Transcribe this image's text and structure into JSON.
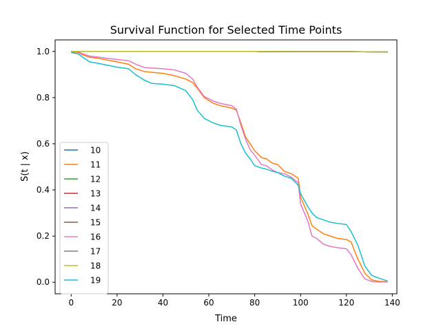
{
  "chart_data": {
    "type": "line",
    "title": "Survival Function for Selected Time Points",
    "xlabel": "Time",
    "ylabel": "S(t | x)",
    "xlim": [
      -7,
      142
    ],
    "ylim": [
      -0.05,
      1.05
    ],
    "xticks": [
      0,
      20,
      40,
      60,
      80,
      100,
      120,
      140
    ],
    "yticks": [
      0.0,
      0.2,
      0.4,
      0.6,
      0.8,
      1.0
    ],
    "grid": false,
    "legend_position": "lower-left",
    "series": [
      {
        "name": "10",
        "color": "#1f77b4",
        "x": [
          0,
          20,
          40,
          60,
          80,
          100,
          120,
          138
        ],
        "y": [
          1.0,
          1.0,
          1.0,
          1.0,
          1.0,
          0.999,
          0.999,
          0.998
        ]
      },
      {
        "name": "11",
        "color": "#ff7f0e",
        "x": [
          0,
          3,
          5,
          8,
          12,
          16,
          20,
          25,
          28,
          32,
          35,
          40,
          45,
          50,
          53,
          55,
          58,
          62,
          65,
          70,
          72,
          74,
          76,
          78,
          80,
          83,
          85,
          88,
          90,
          93,
          96,
          99,
          100,
          103,
          105,
          107,
          110,
          113,
          116,
          120,
          122,
          125,
          128,
          131,
          134,
          138
        ],
        "y": [
          0.998,
          0.996,
          0.985,
          0.975,
          0.97,
          0.962,
          0.955,
          0.945,
          0.925,
          0.913,
          0.91,
          0.905,
          0.895,
          0.88,
          0.865,
          0.84,
          0.8,
          0.775,
          0.765,
          0.755,
          0.745,
          0.69,
          0.63,
          0.6,
          0.57,
          0.54,
          0.535,
          0.515,
          0.51,
          0.48,
          0.47,
          0.45,
          0.37,
          0.3,
          0.245,
          0.23,
          0.21,
          0.2,
          0.19,
          0.185,
          0.175,
          0.1,
          0.04,
          0.01,
          0.004,
          0.002
        ]
      },
      {
        "name": "12",
        "color": "#2ca02c",
        "x": [
          0,
          20,
          40,
          60,
          80,
          100,
          120,
          138
        ],
        "y": [
          1.0,
          1.0,
          1.0,
          1.0,
          1.0,
          0.999,
          0.999,
          0.998
        ]
      },
      {
        "name": "13",
        "color": "#d62728",
        "x": [
          0,
          20,
          40,
          60,
          80,
          100,
          120,
          138
        ],
        "y": [
          1.0,
          1.0,
          1.0,
          1.0,
          1.0,
          0.999,
          0.999,
          0.998
        ]
      },
      {
        "name": "14",
        "color": "#9467bd",
        "x": [
          0,
          20,
          40,
          60,
          80,
          100,
          120,
          138
        ],
        "y": [
          1.0,
          1.0,
          1.0,
          1.0,
          1.0,
          0.999,
          0.999,
          0.998
        ]
      },
      {
        "name": "15",
        "color": "#8c564b",
        "x": [
          0,
          20,
          40,
          60,
          80,
          100,
          120,
          138
        ],
        "y": [
          1.0,
          1.0,
          1.0,
          1.0,
          1.0,
          0.999,
          0.999,
          0.998
        ]
      },
      {
        "name": "16",
        "color": "#e377c2",
        "x": [
          0,
          3,
          5,
          8,
          12,
          16,
          20,
          25,
          28,
          32,
          35,
          40,
          45,
          50,
          53,
          55,
          58,
          62,
          65,
          70,
          72,
          74,
          76,
          78,
          80,
          83,
          85,
          88,
          90,
          93,
          96,
          99,
          100,
          103,
          105,
          107,
          110,
          113,
          116,
          120,
          122,
          125,
          128,
          131,
          134,
          138
        ],
        "y": [
          1.0,
          0.998,
          0.99,
          0.98,
          0.975,
          0.97,
          0.965,
          0.96,
          0.945,
          0.93,
          0.928,
          0.925,
          0.92,
          0.905,
          0.88,
          0.845,
          0.805,
          0.785,
          0.775,
          0.765,
          0.75,
          0.68,
          0.62,
          0.575,
          0.55,
          0.51,
          0.505,
          0.485,
          0.475,
          0.47,
          0.455,
          0.43,
          0.34,
          0.27,
          0.2,
          0.19,
          0.165,
          0.155,
          0.15,
          0.145,
          0.12,
          0.06,
          0.015,
          0.003,
          0.001,
          0.001
        ]
      },
      {
        "name": "17",
        "color": "#7f7f7f",
        "x": [
          0,
          20,
          40,
          60,
          80,
          100,
          120,
          138
        ],
        "y": [
          1.0,
          1.0,
          1.0,
          1.0,
          1.0,
          0.999,
          0.999,
          0.998
        ]
      },
      {
        "name": "18",
        "color": "#bcbd22",
        "x": [
          0,
          20,
          40,
          60,
          80,
          100,
          120,
          138
        ],
        "y": [
          1.0,
          1.0,
          1.0,
          1.0,
          1.0,
          0.999,
          0.999,
          0.998
        ]
      },
      {
        "name": "19",
        "color": "#17becf",
        "x": [
          0,
          3,
          5,
          8,
          12,
          16,
          20,
          25,
          28,
          32,
          35,
          40,
          45,
          50,
          53,
          55,
          58,
          62,
          65,
          70,
          72,
          74,
          76,
          78,
          80,
          83,
          85,
          88,
          90,
          93,
          96,
          99,
          100,
          103,
          105,
          107,
          110,
          113,
          116,
          120,
          122,
          125,
          128,
          131,
          134,
          138
        ],
        "y": [
          0.995,
          0.99,
          0.975,
          0.955,
          0.948,
          0.94,
          0.932,
          0.925,
          0.9,
          0.875,
          0.862,
          0.858,
          0.852,
          0.83,
          0.79,
          0.745,
          0.71,
          0.69,
          0.68,
          0.673,
          0.66,
          0.6,
          0.56,
          0.535,
          0.505,
          0.495,
          0.49,
          0.48,
          0.475,
          0.46,
          0.45,
          0.42,
          0.385,
          0.33,
          0.3,
          0.28,
          0.27,
          0.26,
          0.255,
          0.25,
          0.22,
          0.16,
          0.07,
          0.03,
          0.018,
          0.005
        ]
      }
    ]
  }
}
